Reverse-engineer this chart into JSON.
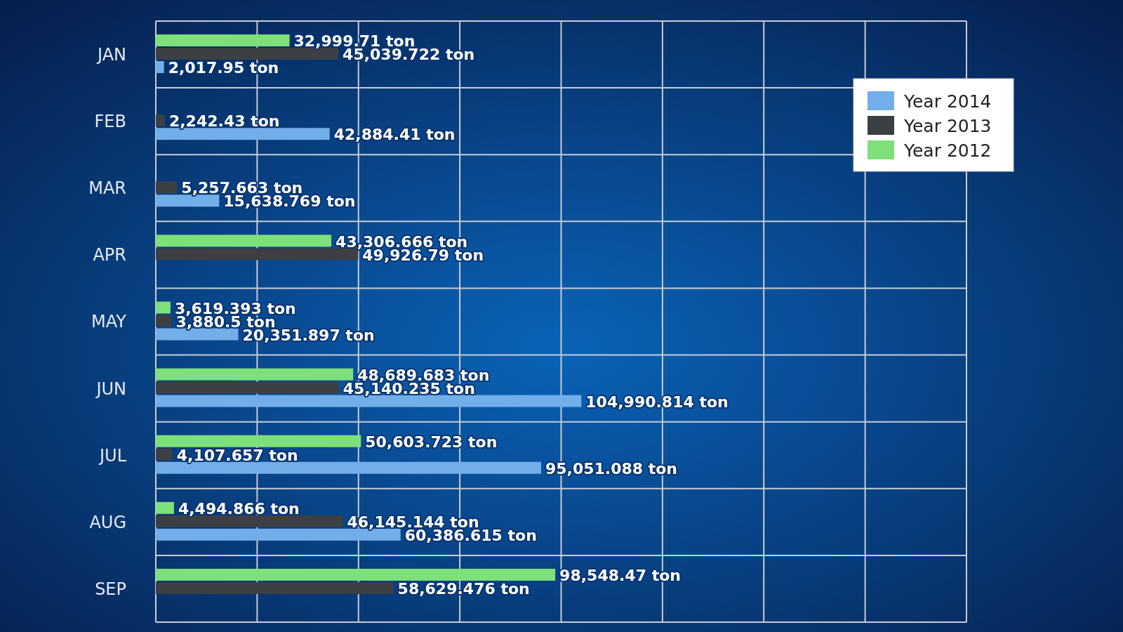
{
  "chart_data": {
    "type": "bar",
    "orientation": "horizontal",
    "categories": [
      "JAN",
      "FEB",
      "MAR",
      "APR",
      "MAY",
      "JUN",
      "JUL",
      "AUG",
      "SEP"
    ],
    "series": [
      {
        "name": "Year 2014",
        "color": "#72aeea",
        "values": [
          2017.95,
          42884.41,
          15638.769,
          null,
          20351.897,
          104990.814,
          95051.088,
          60386.615,
          null
        ],
        "value_labels": [
          "2,017.95 ton",
          "42,884.41 ton",
          "15,638.769 ton",
          null,
          "20,351.897 ton",
          "104,990.814 ton",
          "95,051.088 ton",
          "60,386.615 ton",
          null
        ]
      },
      {
        "name": "Year 2013",
        "color": "#3c3f44",
        "values": [
          45039.722,
          2242.43,
          5257.663,
          49926.79,
          3880.5,
          45140.235,
          4107.657,
          46145.144,
          58629.476
        ],
        "value_labels": [
          "45,039.722 ton",
          "2,242.43 ton",
          "5,257.663 ton",
          "49,926.79 ton",
          "3,880.5 ton",
          "45,140.235 ton",
          "4,107.657 ton",
          "46,145.144 ton",
          "58,629.476 ton"
        ]
      },
      {
        "name": "Year 2012",
        "color": "#7ee07a",
        "values": [
          32999.71,
          null,
          null,
          43306.666,
          3619.393,
          48689.683,
          50603.723,
          4494.866,
          98548.47
        ],
        "value_labels": [
          "32,999.71 ton",
          null,
          null,
          "43,306.666 ton",
          "3,619.393 ton",
          "48,689.683 ton",
          "50,603.723 ton",
          "4,494.866 ton",
          "98,548.47 ton"
        ]
      }
    ],
    "xlim": [
      0,
      200000
    ],
    "xticks": [
      {
        "value": 0,
        "label": null
      },
      {
        "value": 25000,
        "label": null
      },
      {
        "value": 50000,
        "label": null
      },
      {
        "value": 75000,
        "label": null
      },
      {
        "value": 100000,
        "label": null
      },
      {
        "value": 125000,
        "label": null
      },
      {
        "value": 150000,
        "label": null
      },
      {
        "value": 175000,
        "label": null
      },
      {
        "value": 200000,
        "label": null
      }
    ],
    "grid": true,
    "legend": "top right",
    "tick_labels": "y"
  }
}
